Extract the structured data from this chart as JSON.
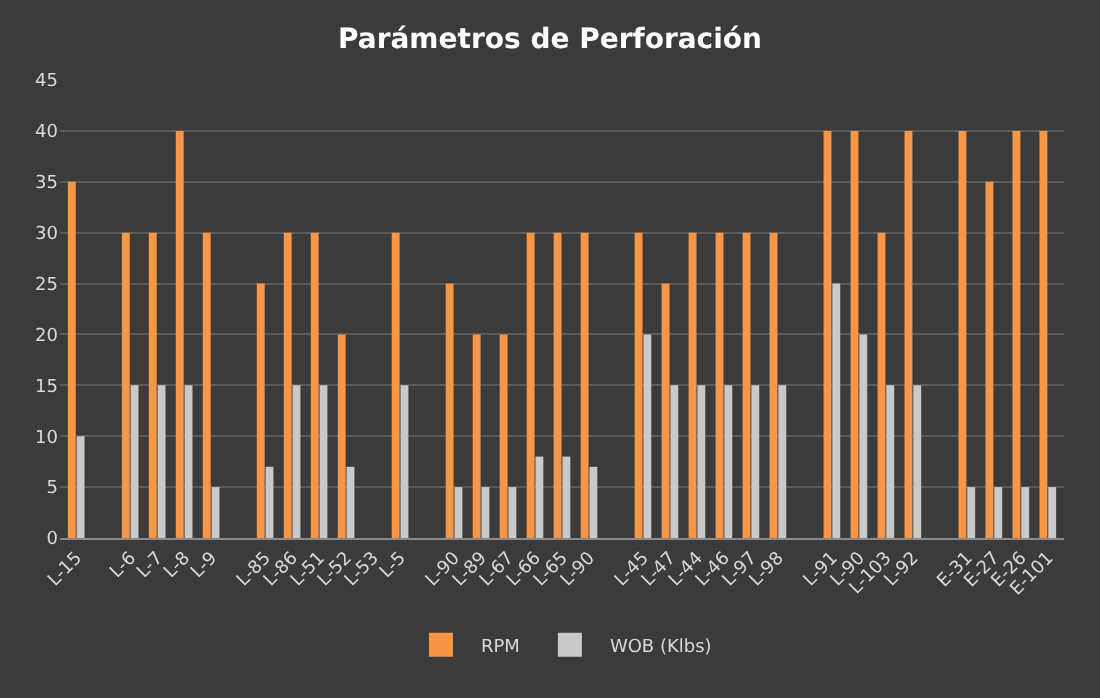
{
  "chart_data": {
    "type": "bar",
    "title": "Parámetros de Perforación",
    "categories": [
      "L-15",
      null,
      "L-6",
      "L-7",
      "L-8",
      "L-9",
      null,
      "L-85",
      "L-86",
      "L-51",
      "L-52",
      "L-53",
      "L-5",
      null,
      "L-90",
      "L-89",
      "L-67",
      "L-66",
      "L-65",
      "L-90",
      null,
      "L-45",
      "L-47",
      "L-44",
      "L-46",
      "L-97",
      "L-98",
      null,
      "L-91",
      "L-90",
      "L-103",
      "L-92",
      null,
      "E-31",
      "E-27",
      "E-26",
      "E-101"
    ],
    "series": [
      {
        "name": "RPM",
        "color": "#f79646",
        "values": [
          35,
          null,
          30,
          30,
          40,
          30,
          null,
          25,
          30,
          30,
          20,
          null,
          30,
          null,
          25,
          20,
          20,
          30,
          30,
          30,
          null,
          30,
          25,
          30,
          30,
          30,
          30,
          null,
          40,
          40,
          30,
          40,
          null,
          40,
          35,
          40,
          40
        ]
      },
      {
        "name": "WOB (Klbs)",
        "color": "#c9c9c9",
        "values": [
          10,
          null,
          15,
          15,
          15,
          5,
          null,
          7,
          15,
          15,
          7,
          null,
          15,
          null,
          5,
          5,
          5,
          8,
          8,
          7,
          null,
          20,
          15,
          15,
          15,
          15,
          15,
          null,
          25,
          20,
          15,
          15,
          null,
          5,
          5,
          5,
          5
        ]
      }
    ],
    "ylim": [
      0,
      45
    ],
    "yticks": [
      0,
      5,
      10,
      15,
      20,
      25,
      30,
      35,
      40,
      45
    ],
    "grid": "y",
    "legend": "bottom"
  }
}
